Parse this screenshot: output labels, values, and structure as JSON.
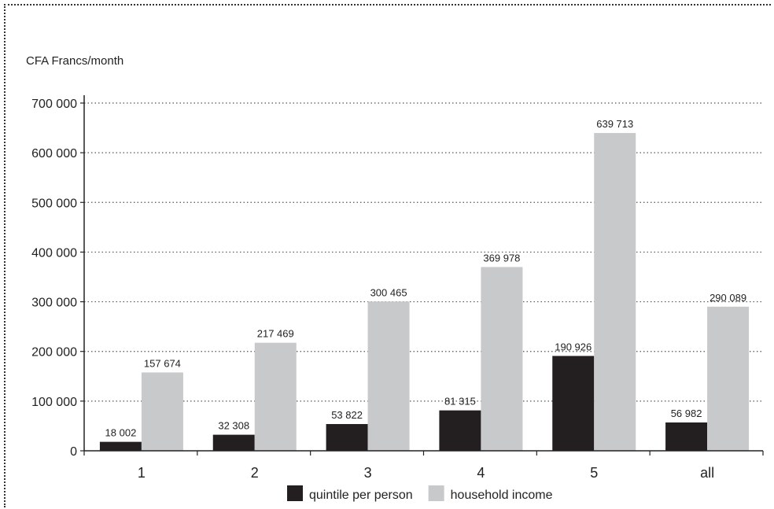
{
  "chart_data": {
    "type": "bar",
    "title": "",
    "ylabel": "CFA Francs/month",
    "xlabel": "",
    "categories": [
      "1",
      "2",
      "3",
      "4",
      "5",
      "all"
    ],
    "series": [
      {
        "name": "quintile per person",
        "color": "#231f20",
        "values": [
          18002,
          32308,
          53822,
          81315,
          190926,
          56982
        ],
        "labels": [
          "18 002",
          "32 308",
          "53 822",
          "81 315",
          "190 926",
          "56 982"
        ]
      },
      {
        "name": "household income",
        "color": "#c8c9ca",
        "values": [
          157674,
          217469,
          300465,
          369978,
          639713,
          290089
        ],
        "labels": [
          "157 674",
          "217 469",
          "300 465",
          "369 978",
          "639 713",
          "290 089"
        ]
      }
    ],
    "ylim": [
      0,
      700000
    ],
    "yticks": [
      0,
      100000,
      200000,
      300000,
      400000,
      500000,
      600000,
      700000
    ],
    "ytick_labels": [
      "0",
      "100 000",
      "200 000",
      "300 000",
      "400 000",
      "500 000",
      "600 000",
      "700 000"
    ],
    "grid": "horizontal-dotted",
    "legend_position": "bottom-center"
  }
}
